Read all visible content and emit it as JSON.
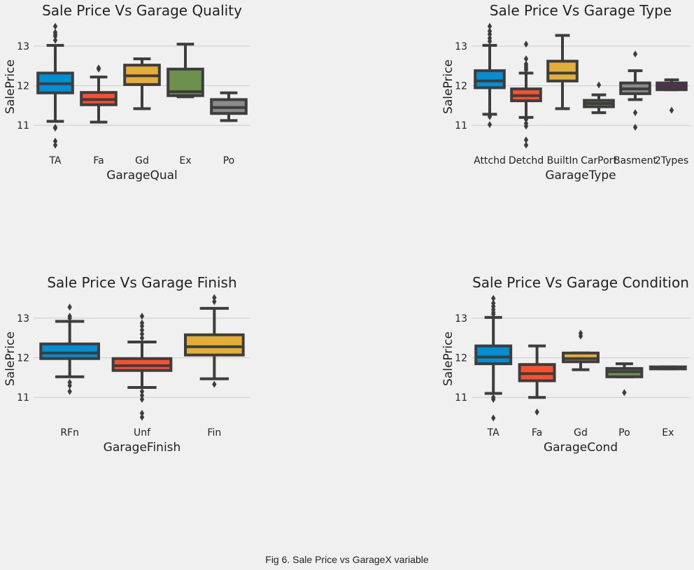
{
  "caption": "Fig 6. Sale Price vs GarageX variable",
  "colors": {
    "background": "#f0f0f0",
    "grid": "#cbcbcb",
    "box_edge": "#3d3d3d",
    "palette": [
      "#008fd5",
      "#fc4f30",
      "#e5ae38",
      "#6d904f",
      "#8b8b8b",
      "#810f7c"
    ]
  },
  "chart_data": [
    {
      "type": "box",
      "title": "Sale Price Vs Garage Quality",
      "xlabel": "GarageQual",
      "ylabel": "SalePrice",
      "yticks": [
        11,
        12,
        13
      ],
      "ylim": [
        10.35,
        13.6
      ],
      "grid": true,
      "categories": [
        "TA",
        "Fa",
        "Gd",
        "Ex",
        "Po"
      ],
      "boxes": [
        {
          "q1": 11.82,
          "median": 12.05,
          "q3": 12.32,
          "whislo": 11.1,
          "whishi": 13.02,
          "fliers": [
            10.95,
            10.93,
            10.6,
            10.5,
            13.15,
            13.25,
            13.3,
            13.35,
            13.5
          ]
        },
        {
          "q1": 11.52,
          "median": 11.65,
          "q3": 11.83,
          "whislo": 11.08,
          "whishi": 12.22,
          "fliers": [
            12.42,
            12.45
          ]
        },
        {
          "q1": 12.03,
          "median": 12.25,
          "q3": 12.52,
          "whislo": 11.42,
          "whishi": 12.68,
          "fliers": []
        },
        {
          "q1": 11.75,
          "median": 11.85,
          "q3": 12.42,
          "whislo": 11.72,
          "whishi": 13.05,
          "fliers": []
        },
        {
          "q1": 11.3,
          "median": 11.45,
          "q3": 11.65,
          "whislo": 11.12,
          "whishi": 11.82,
          "fliers": []
        }
      ]
    },
    {
      "type": "box",
      "title": "Sale Price Vs Garage Type",
      "xlabel": "GarageType",
      "ylabel": "SalePrice",
      "yticks": [
        11,
        12,
        13
      ],
      "ylim": [
        10.35,
        13.6
      ],
      "grid": true,
      "categories": [
        "Attchd",
        "Detchd",
        "BuiltIn",
        "CarPort",
        "Basment",
        "2Types"
      ],
      "boxes": [
        {
          "q1": 11.95,
          "median": 12.12,
          "q3": 12.38,
          "whislo": 11.28,
          "whishi": 13.02,
          "fliers": [
            11.22,
            11.02,
            13.12,
            13.2,
            13.3,
            13.38,
            13.5
          ]
        },
        {
          "q1": 11.62,
          "median": 11.75,
          "q3": 11.92,
          "whislo": 11.2,
          "whishi": 12.32,
          "fliers": [
            11.15,
            11.05,
            10.98,
            10.63,
            10.5,
            12.4,
            12.45,
            12.5,
            12.55,
            12.68,
            13.05
          ]
        },
        {
          "q1": 12.12,
          "median": 12.32,
          "q3": 12.62,
          "whislo": 11.42,
          "whishi": 13.27,
          "fliers": []
        },
        {
          "q1": 11.47,
          "median": 11.55,
          "q3": 11.63,
          "whislo": 11.32,
          "whishi": 11.77,
          "fliers": [
            12.02
          ]
        },
        {
          "q1": 11.8,
          "median": 11.92,
          "q3": 12.07,
          "whislo": 11.65,
          "whishi": 12.38,
          "fliers": [
            11.32,
            10.95,
            12.8
          ]
        },
        {
          "q1": 11.9,
          "median": 11.97,
          "q3": 12.07,
          "whislo": 11.9,
          "whishi": 12.15,
          "fliers": [
            11.38
          ]
        }
      ]
    },
    {
      "type": "box",
      "title": "Sale Price Vs Garage Finish",
      "xlabel": "GarageFinish",
      "ylabel": "SalePrice",
      "yticks": [
        11,
        12,
        13
      ],
      "ylim": [
        10.35,
        13.6
      ],
      "grid": true,
      "categories": [
        "RFn",
        "Unf",
        "Fin"
      ],
      "boxes": [
        {
          "q1": 11.98,
          "median": 12.12,
          "q3": 12.35,
          "whislo": 11.52,
          "whishi": 12.92,
          "fliers": [
            11.38,
            11.3,
            11.15,
            13.0,
            13.05,
            13.28
          ]
        },
        {
          "q1": 11.68,
          "median": 11.8,
          "q3": 11.98,
          "whislo": 11.25,
          "whishi": 12.4,
          "fliers": [
            11.15,
            11.05,
            10.95,
            10.6,
            10.5,
            12.5,
            12.6,
            12.7,
            12.8,
            12.88,
            13.05
          ]
        },
        {
          "q1": 12.07,
          "median": 12.28,
          "q3": 12.58,
          "whislo": 11.47,
          "whishi": 13.25,
          "fliers": [
            11.33,
            13.42,
            13.52
          ]
        }
      ]
    },
    {
      "type": "box",
      "title": "Sale Price Vs Garage Condition",
      "xlabel": "GarageCond",
      "ylabel": "SalePrice",
      "yticks": [
        11,
        12,
        13
      ],
      "ylim": [
        10.35,
        13.6
      ],
      "grid": true,
      "categories": [
        "TA",
        "Fa",
        "Gd",
        "Po",
        "Ex"
      ],
      "boxes": [
        {
          "q1": 11.85,
          "median": 12.02,
          "q3": 12.3,
          "whislo": 11.1,
          "whishi": 13.02,
          "fliers": [
            11.0,
            10.95,
            10.48,
            13.1,
            13.15,
            13.22,
            13.3,
            13.38,
            13.5
          ]
        },
        {
          "q1": 11.42,
          "median": 11.6,
          "q3": 11.83,
          "whislo": 11.0,
          "whishi": 12.3,
          "fliers": [
            10.63
          ]
        },
        {
          "q1": 11.9,
          "median": 11.98,
          "q3": 12.12,
          "whislo": 11.7,
          "whishi": 12.12,
          "fliers": [
            12.55,
            12.62
          ]
        },
        {
          "q1": 11.52,
          "median": 11.65,
          "q3": 11.73,
          "whislo": 11.52,
          "whishi": 11.85,
          "fliers": [
            11.12
          ]
        },
        {
          "q1": 11.72,
          "median": 11.75,
          "q3": 11.77,
          "whislo": 11.72,
          "whishi": 11.77,
          "fliers": []
        }
      ]
    }
  ]
}
